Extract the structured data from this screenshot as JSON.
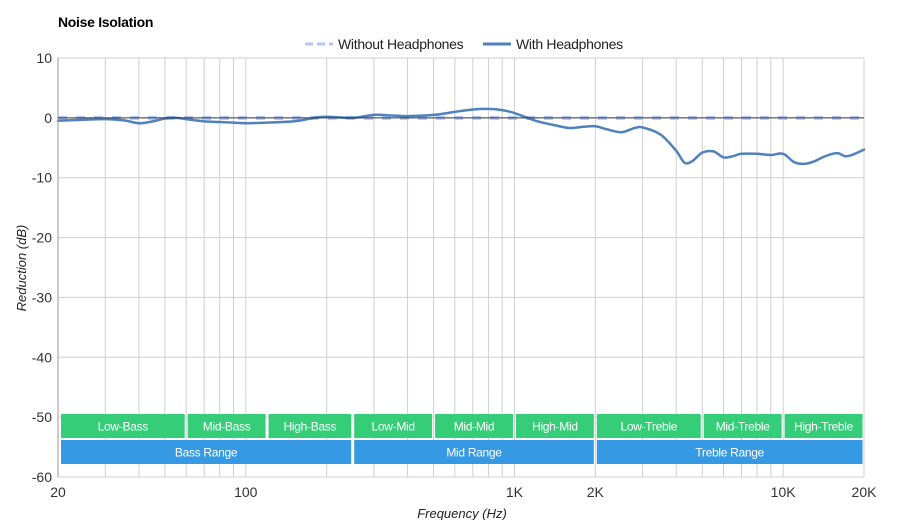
{
  "chart_data": {
    "type": "line",
    "title": "Noise Isolation",
    "xlabel": "Frequency (Hz)",
    "ylabel": "Reduction (dB)",
    "xscale": "log",
    "xlim": [
      20,
      20000
    ],
    "ylim": [
      -60,
      10
    ],
    "yticks": [
      10,
      0,
      -10,
      -20,
      -30,
      -40,
      -50,
      -60
    ],
    "xticks": [
      {
        "value": 20,
        "label": "20"
      },
      {
        "value": 100,
        "label": "100"
      },
      {
        "value": 1000,
        "label": "1K"
      },
      {
        "value": 2000,
        "label": "2K"
      },
      {
        "value": 10000,
        "label": "10K"
      },
      {
        "value": 20000,
        "label": "20K"
      }
    ],
    "grid_freqs": [
      20,
      30,
      40,
      50,
      60,
      70,
      80,
      90,
      100,
      200,
      300,
      400,
      500,
      600,
      700,
      800,
      900,
      1000,
      2000,
      3000,
      4000,
      5000,
      6000,
      7000,
      8000,
      9000,
      10000,
      20000
    ],
    "legend": {
      "placement": "top-center",
      "entries": [
        {
          "label": "Without Headphones",
          "style": "dashed",
          "color": "#b3c7f7"
        },
        {
          "label": "With Headphones",
          "style": "solid",
          "color": "#4f81bd"
        }
      ]
    },
    "series": [
      {
        "name": "Without Headphones",
        "color": "#b3c7f7",
        "points": [
          [
            20,
            0
          ],
          [
            20000,
            0
          ]
        ]
      },
      {
        "name": "With Headphones",
        "color": "#4f81bd",
        "points": [
          [
            20,
            -0.5
          ],
          [
            25,
            -0.3
          ],
          [
            30,
            -0.2
          ],
          [
            35,
            -0.4
          ],
          [
            40,
            -0.9
          ],
          [
            45,
            -0.6
          ],
          [
            50,
            -0.1
          ],
          [
            55,
            0.0
          ],
          [
            60,
            -0.2
          ],
          [
            70,
            -0.6
          ],
          [
            80,
            -0.7
          ],
          [
            90,
            -0.8
          ],
          [
            100,
            -0.9
          ],
          [
            120,
            -0.8
          ],
          [
            150,
            -0.6
          ],
          [
            180,
            0.0
          ],
          [
            200,
            0.2
          ],
          [
            250,
            0.0
          ],
          [
            300,
            0.5
          ],
          [
            350,
            0.4
          ],
          [
            400,
            0.3
          ],
          [
            500,
            0.5
          ],
          [
            600,
            1.0
          ],
          [
            700,
            1.4
          ],
          [
            800,
            1.5
          ],
          [
            900,
            1.3
          ],
          [
            1000,
            0.8
          ],
          [
            1200,
            -0.5
          ],
          [
            1400,
            -1.2
          ],
          [
            1600,
            -1.7
          ],
          [
            1800,
            -1.5
          ],
          [
            2000,
            -1.4
          ],
          [
            2200,
            -1.9
          ],
          [
            2500,
            -2.4
          ],
          [
            2800,
            -1.7
          ],
          [
            3000,
            -1.6
          ],
          [
            3500,
            -2.8
          ],
          [
            4000,
            -5.5
          ],
          [
            4300,
            -7.5
          ],
          [
            4600,
            -7.2
          ],
          [
            5000,
            -5.8
          ],
          [
            5500,
            -5.6
          ],
          [
            6000,
            -6.6
          ],
          [
            6500,
            -6.4
          ],
          [
            7000,
            -6.0
          ],
          [
            8000,
            -6.0
          ],
          [
            9000,
            -6.2
          ],
          [
            10000,
            -6.0
          ],
          [
            11000,
            -7.4
          ],
          [
            12000,
            -7.7
          ],
          [
            13000,
            -7.3
          ],
          [
            14000,
            -6.6
          ],
          [
            15000,
            -6.1
          ],
          [
            16000,
            -5.9
          ],
          [
            17000,
            -6.4
          ],
          [
            18000,
            -6.2
          ],
          [
            20000,
            -5.3
          ]
        ]
      }
    ],
    "range_bands": {
      "upper_color": "#36cd78",
      "lower_color": "#3699e3",
      "upper": [
        {
          "label": "Low-Bass",
          "from": 20,
          "to": 60
        },
        {
          "label": "Mid-Bass",
          "from": 60,
          "to": 120
        },
        {
          "label": "High-Bass",
          "from": 120,
          "to": 250
        },
        {
          "label": "Low-Mid",
          "from": 250,
          "to": 500
        },
        {
          "label": "Mid-Mid",
          "from": 500,
          "to": 1000
        },
        {
          "label": "High-Mid",
          "from": 1000,
          "to": 2000
        },
        {
          "label": "Low-Treble",
          "from": 2000,
          "to": 5000
        },
        {
          "label": "Mid-Treble",
          "from": 5000,
          "to": 10000
        },
        {
          "label": "High-Treble",
          "from": 10000,
          "to": 20000
        }
      ],
      "lower": [
        {
          "label": "Bass Range",
          "from": 20,
          "to": 250
        },
        {
          "label": "Mid Range",
          "from": 250,
          "to": 2000
        },
        {
          "label": "Treble Range",
          "from": 2000,
          "to": 20000
        }
      ]
    }
  }
}
